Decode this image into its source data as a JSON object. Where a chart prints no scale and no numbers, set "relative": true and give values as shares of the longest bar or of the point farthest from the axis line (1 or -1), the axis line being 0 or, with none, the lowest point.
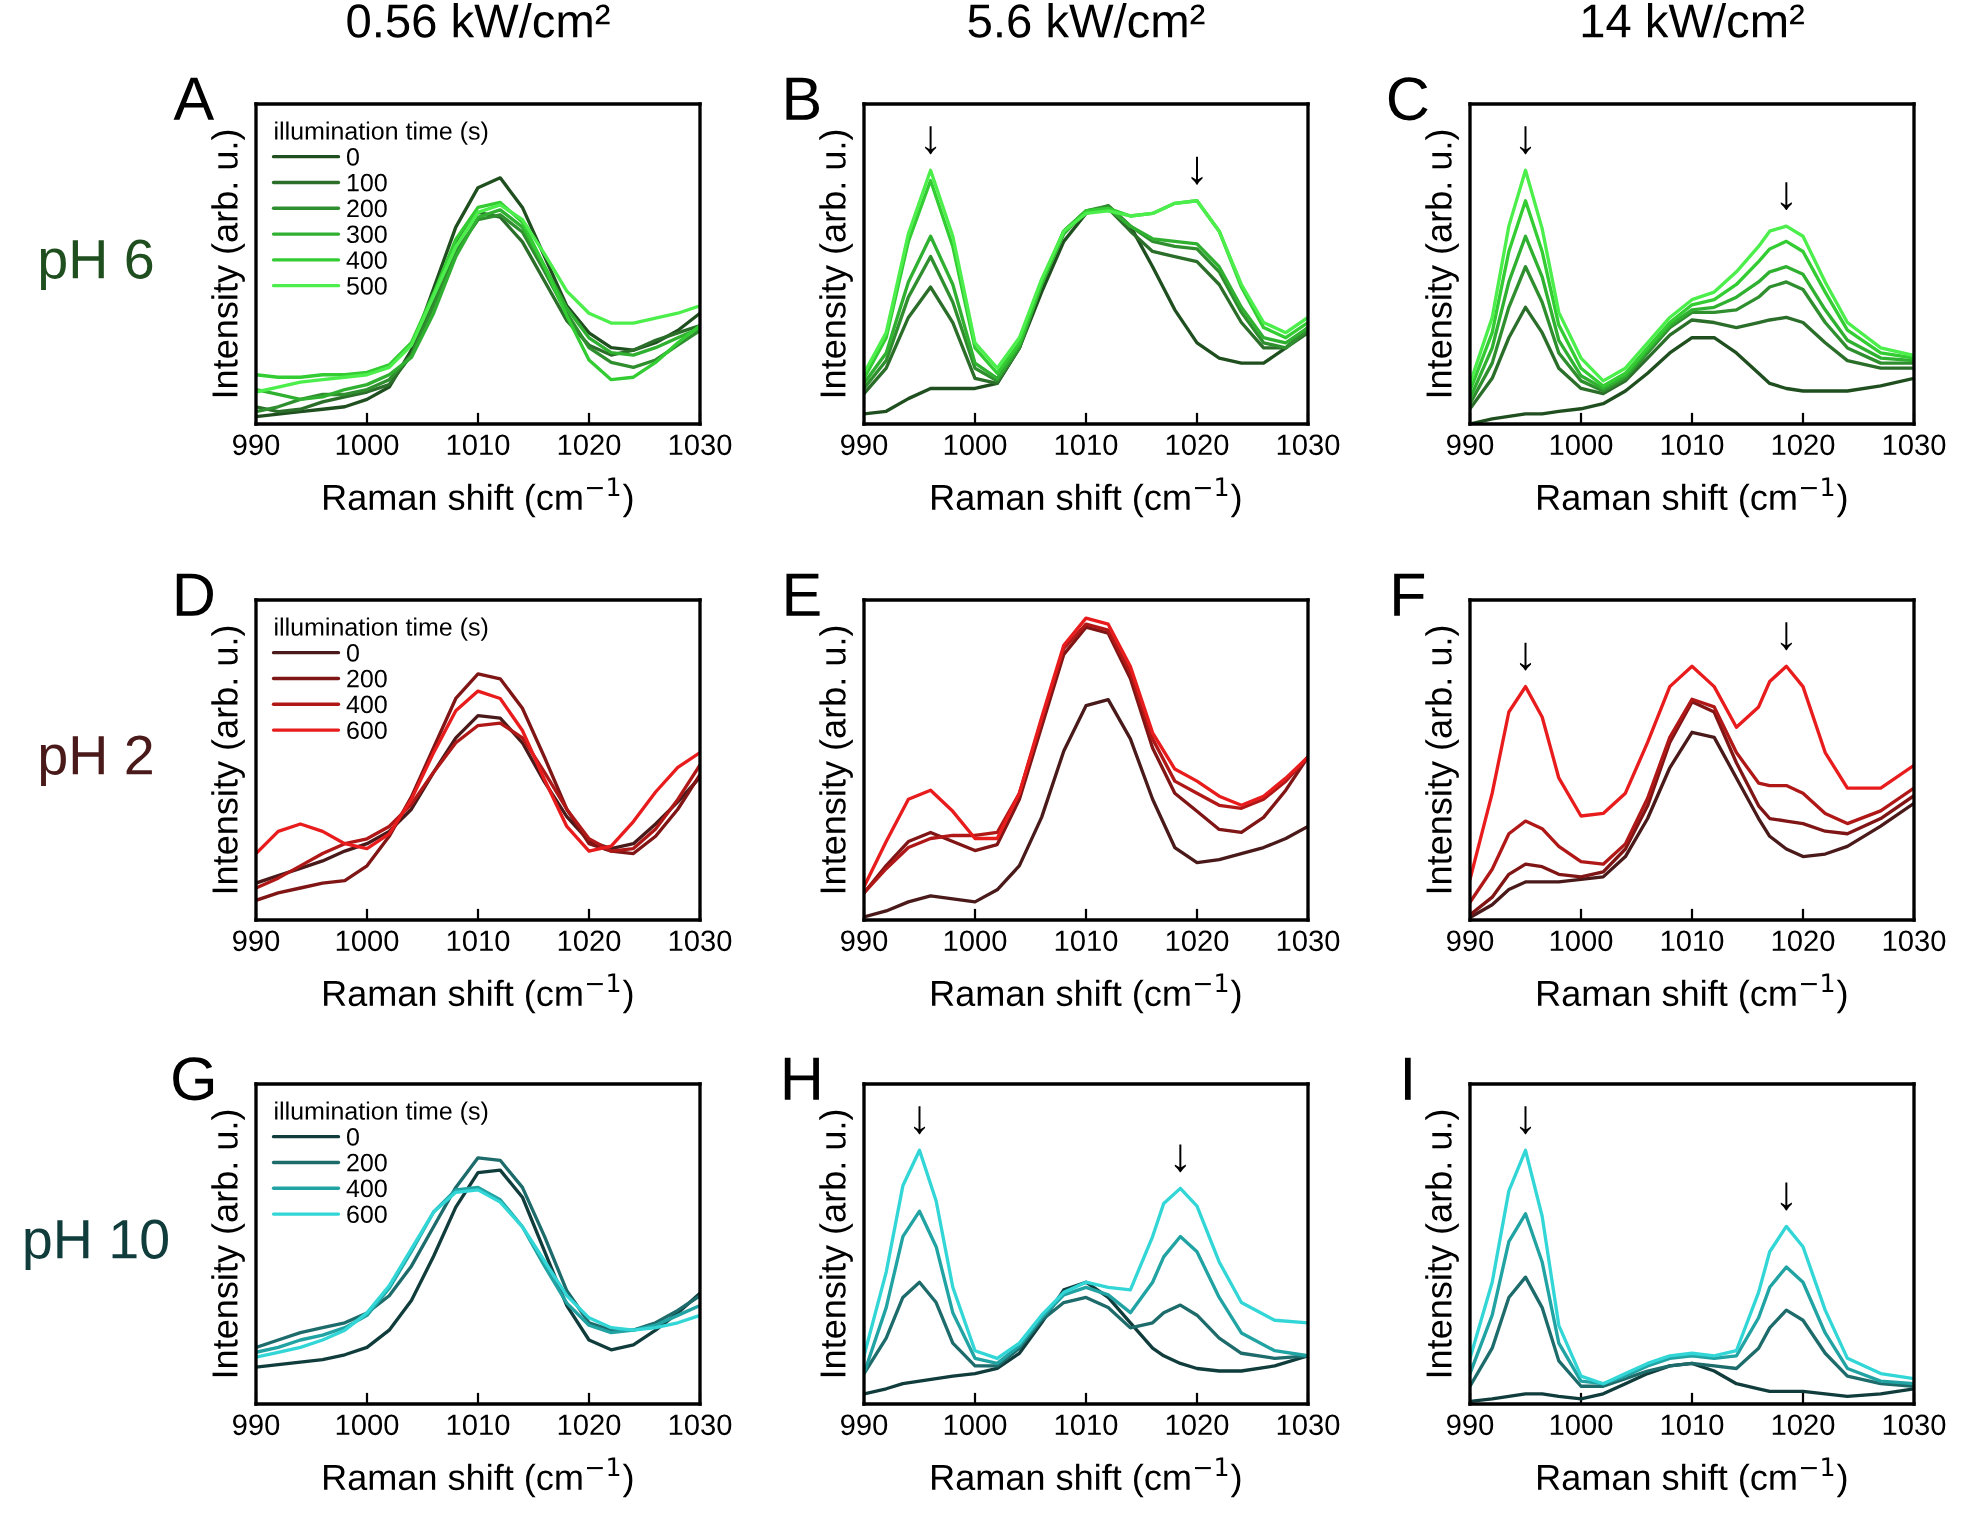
{
  "chart_data": [
    {
      "type": "line",
      "relative": true,
      "title": "0.56 kW/cm²",
      "subtitle": "A",
      "xlabel": "Raman shift (cm$^{−1}$)",
      "ylabel": "Intensity (arb. u.)",
      "xlim": [
        990,
        1030
      ],
      "xticks": [
        990,
        1000,
        1010,
        1020,
        1030
      ],
      "legend": "top left",
      "legend_title": "illumination time (s)",
      "annotations": [
        "pH 6"
      ],
      "x": [
        990,
        992,
        994,
        996,
        998,
        1000,
        1002,
        1004,
        1006,
        1008,
        1010,
        1012,
        1014,
        1016,
        1018,
        1020,
        1022,
        1024,
        1026,
        1028,
        1030
      ],
      "series": [
        {
          "name": "0",
          "color": "#1f4f1f",
          "values": [
            0.03,
            0.04,
            0.05,
            0.06,
            0.07,
            0.1,
            0.15,
            0.3,
            0.55,
            0.8,
            0.96,
            1.0,
            0.88,
            0.68,
            0.48,
            0.37,
            0.31,
            0.3,
            0.33,
            0.38,
            0.45
          ]
        },
        {
          "name": "100",
          "color": "#2a6e2a",
          "values": [
            0.07,
            0.05,
            0.06,
            0.09,
            0.11,
            0.13,
            0.16,
            0.28,
            0.5,
            0.73,
            0.86,
            0.84,
            0.74,
            0.58,
            0.42,
            0.32,
            0.28,
            0.3,
            0.34,
            0.37,
            0.4
          ]
        },
        {
          "name": "200",
          "color": "#2f8f2f",
          "values": [
            0.05,
            0.07,
            0.1,
            0.12,
            0.12,
            0.14,
            0.18,
            0.28,
            0.48,
            0.7,
            0.83,
            0.85,
            0.78,
            0.62,
            0.45,
            0.31,
            0.25,
            0.23,
            0.26,
            0.32,
            0.38
          ]
        },
        {
          "name": "300",
          "color": "#30b030",
          "values": [
            0.14,
            0.12,
            0.1,
            0.11,
            0.14,
            0.16,
            0.2,
            0.27,
            0.45,
            0.68,
            0.84,
            0.87,
            0.8,
            0.64,
            0.47,
            0.35,
            0.29,
            0.28,
            0.31,
            0.35,
            0.39
          ]
        },
        {
          "name": "400",
          "color": "#33cc33",
          "values": [
            0.2,
            0.19,
            0.19,
            0.2,
            0.2,
            0.21,
            0.24,
            0.33,
            0.53,
            0.75,
            0.88,
            0.9,
            0.82,
            0.64,
            0.44,
            0.26,
            0.18,
            0.19,
            0.25,
            0.33,
            0.4
          ]
        },
        {
          "name": "500",
          "color": "#4cee4c",
          "values": [
            0.13,
            0.15,
            0.17,
            0.18,
            0.19,
            0.2,
            0.23,
            0.32,
            0.52,
            0.72,
            0.86,
            0.89,
            0.83,
            0.69,
            0.54,
            0.45,
            0.41,
            0.41,
            0.43,
            0.45,
            0.48
          ]
        }
      ]
    },
    {
      "type": "line",
      "relative": true,
      "title": "5.6 kW/cm²",
      "subtitle": "B",
      "xlabel": "Raman shift (cm$^{−1}$)",
      "ylabel": "Intensity (arb. u.)",
      "xlim": [
        990,
        1030
      ],
      "xticks": [
        990,
        1000,
        1010,
        1020,
        1030
      ],
      "annotations": [
        "↓",
        "↓"
      ],
      "x": [
        990,
        992,
        994,
        996,
        998,
        1000,
        1002,
        1004,
        1006,
        1008,
        1010,
        1012,
        1014,
        1016,
        1018,
        1020,
        1022,
        1024,
        1026,
        1028,
        1030
      ],
      "series": [
        {
          "color": "#1f4f1f",
          "values": [
            0.04,
            0.05,
            0.1,
            0.14,
            0.14,
            0.14,
            0.16,
            0.3,
            0.52,
            0.72,
            0.83,
            0.86,
            0.78,
            0.62,
            0.45,
            0.32,
            0.26,
            0.24,
            0.24,
            0.3,
            0.38
          ]
        },
        {
          "color": "#2a6e2a",
          "values": [
            0.12,
            0.22,
            0.42,
            0.54,
            0.4,
            0.18,
            0.16,
            0.3,
            0.55,
            0.76,
            0.84,
            0.85,
            0.76,
            0.68,
            0.66,
            0.64,
            0.55,
            0.4,
            0.3,
            0.3,
            0.36
          ]
        },
        {
          "color": "#2f8f2f",
          "values": [
            0.14,
            0.25,
            0.5,
            0.66,
            0.48,
            0.22,
            0.17,
            0.3,
            0.55,
            0.76,
            0.84,
            0.86,
            0.78,
            0.72,
            0.7,
            0.69,
            0.6,
            0.44,
            0.32,
            0.3,
            0.37
          ]
        },
        {
          "color": "#30b030",
          "values": [
            0.16,
            0.28,
            0.56,
            0.74,
            0.55,
            0.24,
            0.18,
            0.31,
            0.55,
            0.75,
            0.84,
            0.85,
            0.78,
            0.73,
            0.72,
            0.71,
            0.62,
            0.46,
            0.34,
            0.32,
            0.38
          ]
        },
        {
          "color": "#33cc33",
          "values": [
            0.18,
            0.34,
            0.72,
            0.96,
            0.7,
            0.3,
            0.2,
            0.32,
            0.56,
            0.76,
            0.84,
            0.85,
            0.82,
            0.83,
            0.87,
            0.88,
            0.76,
            0.54,
            0.38,
            0.34,
            0.4
          ]
        },
        {
          "color": "#4cee4c",
          "values": [
            0.2,
            0.36,
            0.75,
            1.0,
            0.74,
            0.32,
            0.22,
            0.34,
            0.57,
            0.76,
            0.83,
            0.84,
            0.82,
            0.83,
            0.87,
            0.88,
            0.76,
            0.55,
            0.4,
            0.36,
            0.42
          ]
        }
      ]
    },
    {
      "type": "line",
      "relative": true,
      "title": "14 kW/cm²",
      "subtitle": "C",
      "xlabel": "Raman shift (cm$^{−1}$)",
      "ylabel": "Intensity (arb. u.)",
      "xlim": [
        990,
        1030
      ],
      "xticks": [
        990,
        1000,
        1010,
        1020,
        1030
      ],
      "annotations": [
        "↓",
        "↓"
      ],
      "x": [
        990,
        992,
        993.5,
        995,
        996.5,
        998,
        1000,
        1002,
        1004,
        1006,
        1008,
        1010,
        1012,
        1014,
        1016,
        1017,
        1018.5,
        1020,
        1022,
        1024,
        1027,
        1030
      ],
      "series": [
        {
          "color": "#1f4f1f",
          "values": [
            0.0,
            0.02,
            0.03,
            0.04,
            0.04,
            0.05,
            0.06,
            0.08,
            0.13,
            0.2,
            0.28,
            0.34,
            0.34,
            0.28,
            0.2,
            0.16,
            0.14,
            0.13,
            0.13,
            0.13,
            0.15,
            0.18
          ]
        },
        {
          "color": "#2a6e2a",
          "values": [
            0.06,
            0.18,
            0.34,
            0.46,
            0.36,
            0.22,
            0.14,
            0.12,
            0.17,
            0.26,
            0.35,
            0.41,
            0.4,
            0.38,
            0.4,
            0.41,
            0.42,
            0.4,
            0.32,
            0.25,
            0.22,
            0.22
          ]
        },
        {
          "color": "#2f8f2f",
          "values": [
            0.08,
            0.24,
            0.46,
            0.62,
            0.48,
            0.28,
            0.17,
            0.13,
            0.18,
            0.28,
            0.38,
            0.44,
            0.44,
            0.45,
            0.5,
            0.54,
            0.56,
            0.53,
            0.4,
            0.3,
            0.24,
            0.24
          ]
        },
        {
          "color": "#30b030",
          "values": [
            0.1,
            0.3,
            0.56,
            0.74,
            0.58,
            0.33,
            0.19,
            0.14,
            0.19,
            0.29,
            0.39,
            0.45,
            0.46,
            0.5,
            0.56,
            0.6,
            0.62,
            0.59,
            0.45,
            0.33,
            0.26,
            0.25
          ]
        },
        {
          "color": "#33cc33",
          "values": [
            0.13,
            0.36,
            0.68,
            0.88,
            0.68,
            0.39,
            0.22,
            0.15,
            0.2,
            0.3,
            0.4,
            0.47,
            0.49,
            0.55,
            0.64,
            0.69,
            0.72,
            0.68,
            0.52,
            0.37,
            0.28,
            0.26
          ]
        },
        {
          "color": "#4cee4c",
          "values": [
            0.16,
            0.42,
            0.78,
            1.0,
            0.77,
            0.44,
            0.26,
            0.17,
            0.22,
            0.32,
            0.42,
            0.49,
            0.52,
            0.6,
            0.7,
            0.76,
            0.78,
            0.74,
            0.56,
            0.4,
            0.3,
            0.27
          ]
        }
      ]
    },
    {
      "type": "line",
      "relative": true,
      "subtitle": "D",
      "xlabel": "Raman shift (cm$^{−1}$)",
      "ylabel": "Intensity (arb. u.)",
      "xlim": [
        990,
        1030
      ],
      "xticks": [
        990,
        1000,
        1010,
        1020,
        1030
      ],
      "legend": "top left",
      "legend_title": "illumination time (s)",
      "annotations": [
        "pH 2"
      ],
      "x": [
        990,
        992,
        994,
        996,
        998,
        1000,
        1002,
        1004,
        1006,
        1008,
        1010,
        1012,
        1014,
        1016,
        1018,
        1020,
        1022,
        1024,
        1026,
        1028,
        1030
      ],
      "series": [
        {
          "name": "0",
          "color": "#4a1a1a",
          "values": [
            0.15,
            0.18,
            0.21,
            0.24,
            0.28,
            0.31,
            0.36,
            0.45,
            0.6,
            0.74,
            0.83,
            0.82,
            0.72,
            0.56,
            0.42,
            0.32,
            0.29,
            0.31,
            0.39,
            0.48,
            0.58
          ]
        },
        {
          "name": "200",
          "color": "#801515",
          "values": [
            0.08,
            0.11,
            0.13,
            0.15,
            0.16,
            0.22,
            0.34,
            0.5,
            0.7,
            0.9,
            1.0,
            0.98,
            0.86,
            0.66,
            0.45,
            0.31,
            0.28,
            0.27,
            0.34,
            0.45,
            0.59
          ]
        },
        {
          "name": "400",
          "color": "#b01818",
          "values": [
            0.13,
            0.17,
            0.22,
            0.27,
            0.31,
            0.33,
            0.38,
            0.47,
            0.6,
            0.72,
            0.79,
            0.8,
            0.74,
            0.6,
            0.45,
            0.33,
            0.28,
            0.29,
            0.37,
            0.49,
            0.63
          ]
        },
        {
          "name": "600",
          "color": "#e81c1c",
          "values": [
            0.27,
            0.36,
            0.39,
            0.36,
            0.31,
            0.29,
            0.35,
            0.49,
            0.68,
            0.85,
            0.93,
            0.9,
            0.77,
            0.57,
            0.38,
            0.28,
            0.3,
            0.4,
            0.52,
            0.62,
            0.68
          ]
        }
      ]
    },
    {
      "type": "line",
      "relative": true,
      "subtitle": "E",
      "xlabel": "Raman shift (cm$^{−1}$)",
      "ylabel": "Intensity (arb. u.)",
      "xlim": [
        990,
        1030
      ],
      "xticks": [
        990,
        1000,
        1010,
        1020,
        1030
      ],
      "x": [
        990,
        992,
        994,
        996,
        998,
        1000,
        1002,
        1004,
        1006,
        1008,
        1010,
        1012,
        1014,
        1016,
        1018,
        1020,
        1022,
        1024,
        1026,
        1028,
        1030
      ],
      "series": [
        {
          "color": "#4a1a1a",
          "values": [
            0.01,
            0.03,
            0.06,
            0.08,
            0.07,
            0.06,
            0.1,
            0.18,
            0.34,
            0.56,
            0.71,
            0.73,
            0.6,
            0.4,
            0.24,
            0.19,
            0.2,
            0.22,
            0.24,
            0.27,
            0.31
          ]
        },
        {
          "color": "#801515",
          "values": [
            0.09,
            0.18,
            0.26,
            0.29,
            0.26,
            0.23,
            0.25,
            0.4,
            0.64,
            0.88,
            0.97,
            0.95,
            0.8,
            0.57,
            0.42,
            0.36,
            0.3,
            0.29,
            0.34,
            0.43,
            0.54
          ]
        },
        {
          "color": "#b01818",
          "values": [
            0.09,
            0.17,
            0.24,
            0.27,
            0.28,
            0.28,
            0.29,
            0.42,
            0.66,
            0.9,
            0.98,
            0.96,
            0.82,
            0.6,
            0.46,
            0.42,
            0.38,
            0.37,
            0.4,
            0.46,
            0.54
          ]
        },
        {
          "color": "#e81c1c",
          "values": [
            0.11,
            0.26,
            0.4,
            0.43,
            0.36,
            0.27,
            0.27,
            0.42,
            0.67,
            0.91,
            1.0,
            0.98,
            0.84,
            0.62,
            0.5,
            0.46,
            0.41,
            0.38,
            0.41,
            0.47,
            0.54
          ]
        }
      ]
    },
    {
      "type": "line",
      "relative": true,
      "subtitle": "F",
      "xlabel": "Raman shift (cm$^{−1}$)",
      "ylabel": "Intensity (arb. u.)",
      "xlim": [
        990,
        1030
      ],
      "xticks": [
        990,
        1000,
        1010,
        1020,
        1030
      ],
      "annotations": [
        "↓",
        "↓"
      ],
      "x": [
        990,
        992,
        993.5,
        995,
        996.5,
        998,
        1000,
        1002,
        1004,
        1006,
        1008,
        1010,
        1012,
        1014,
        1016,
        1017,
        1018.5,
        1020,
        1022,
        1024,
        1027,
        1030
      ],
      "series": [
        {
          "color": "#4a1a1a",
          "values": [
            0.01,
            0.06,
            0.12,
            0.15,
            0.15,
            0.15,
            0.16,
            0.17,
            0.25,
            0.4,
            0.6,
            0.74,
            0.72,
            0.56,
            0.4,
            0.33,
            0.28,
            0.25,
            0.26,
            0.29,
            0.37,
            0.46
          ]
        },
        {
          "color": "#801515",
          "values": [
            0.02,
            0.09,
            0.18,
            0.22,
            0.21,
            0.18,
            0.17,
            0.19,
            0.28,
            0.45,
            0.7,
            0.86,
            0.82,
            0.62,
            0.45,
            0.4,
            0.39,
            0.38,
            0.35,
            0.34,
            0.4,
            0.49
          ]
        },
        {
          "color": "#b01818",
          "values": [
            0.07,
            0.2,
            0.34,
            0.39,
            0.36,
            0.29,
            0.23,
            0.22,
            0.3,
            0.48,
            0.72,
            0.87,
            0.84,
            0.66,
            0.54,
            0.53,
            0.53,
            0.5,
            0.42,
            0.38,
            0.43,
            0.52
          ]
        },
        {
          "color": "#e81c1c",
          "values": [
            0.16,
            0.5,
            0.82,
            0.92,
            0.8,
            0.56,
            0.41,
            0.42,
            0.5,
            0.7,
            0.92,
            1.0,
            0.92,
            0.76,
            0.84,
            0.94,
            1.0,
            0.92,
            0.66,
            0.52,
            0.52,
            0.61
          ]
        }
      ]
    },
    {
      "type": "line",
      "relative": true,
      "subtitle": "G",
      "xlabel": "Raman shift (cm$^{−1}$)",
      "ylabel": "Intensity (arb. u.)",
      "xlim": [
        990,
        1030
      ],
      "xticks": [
        990,
        1000,
        1010,
        1020,
        1030
      ],
      "legend": "top left",
      "legend_title": "illumination time (s)",
      "annotations": [
        "pH 10"
      ],
      "x": [
        990,
        992,
        994,
        996,
        998,
        1000,
        1002,
        1004,
        1006,
        1008,
        1010,
        1012,
        1014,
        1016,
        1018,
        1020,
        1022,
        1024,
        1026,
        1028,
        1030
      ],
      "series": [
        {
          "name": "0",
          "color": "#103c3c",
          "values": [
            0.15,
            0.16,
            0.17,
            0.18,
            0.2,
            0.23,
            0.3,
            0.42,
            0.6,
            0.8,
            0.94,
            0.95,
            0.84,
            0.62,
            0.4,
            0.26,
            0.22,
            0.24,
            0.3,
            0.37,
            0.45
          ]
        },
        {
          "name": "200",
          "color": "#1d6b6b",
          "values": [
            0.23,
            0.26,
            0.29,
            0.31,
            0.33,
            0.37,
            0.44,
            0.56,
            0.72,
            0.88,
            1.0,
            0.99,
            0.88,
            0.68,
            0.46,
            0.33,
            0.3,
            0.3,
            0.33,
            0.38,
            0.44
          ]
        },
        {
          "name": "400",
          "color": "#21a3a3",
          "values": [
            0.21,
            0.23,
            0.26,
            0.28,
            0.31,
            0.36,
            0.47,
            0.62,
            0.78,
            0.87,
            0.88,
            0.83,
            0.72,
            0.56,
            0.41,
            0.32,
            0.29,
            0.3,
            0.32,
            0.36,
            0.4
          ]
        },
        {
          "name": "600",
          "color": "#33d6d6",
          "values": [
            0.19,
            0.21,
            0.23,
            0.26,
            0.3,
            0.37,
            0.48,
            0.63,
            0.78,
            0.86,
            0.87,
            0.82,
            0.72,
            0.58,
            0.44,
            0.35,
            0.31,
            0.3,
            0.31,
            0.33,
            0.36
          ]
        }
      ]
    },
    {
      "type": "line",
      "relative": true,
      "subtitle": "H",
      "xlabel": "Raman shift (cm$^{−1}$)",
      "ylabel": "Intensity (arb. u.)",
      "xlim": [
        990,
        1030
      ],
      "xticks": [
        990,
        1000,
        1010,
        1020,
        1030
      ],
      "annotations": [
        "↓",
        "↓"
      ],
      "x": [
        990,
        992,
        993.5,
        995,
        996.5,
        998,
        1000,
        1002,
        1004,
        1006,
        1008,
        1010,
        1012,
        1014,
        1016,
        1017,
        1018.5,
        1020,
        1022,
        1024,
        1027,
        1030
      ],
      "series": [
        {
          "color": "#103c3c",
          "values": [
            0.04,
            0.06,
            0.08,
            0.09,
            0.1,
            0.11,
            0.12,
            0.14,
            0.2,
            0.32,
            0.45,
            0.48,
            0.42,
            0.32,
            0.22,
            0.19,
            0.16,
            0.14,
            0.13,
            0.13,
            0.15,
            0.19
          ]
        },
        {
          "color": "#1d6b6b",
          "values": [
            0.12,
            0.26,
            0.42,
            0.48,
            0.4,
            0.24,
            0.15,
            0.15,
            0.22,
            0.33,
            0.4,
            0.42,
            0.38,
            0.3,
            0.32,
            0.36,
            0.39,
            0.35,
            0.26,
            0.2,
            0.18,
            0.19
          ]
        },
        {
          "color": "#21a3a3",
          "values": [
            0.12,
            0.38,
            0.66,
            0.76,
            0.62,
            0.36,
            0.18,
            0.16,
            0.23,
            0.34,
            0.43,
            0.46,
            0.43,
            0.36,
            0.48,
            0.58,
            0.66,
            0.6,
            0.42,
            0.28,
            0.21,
            0.19
          ]
        },
        {
          "color": "#33d6d6",
          "values": [
            0.19,
            0.52,
            0.86,
            1.0,
            0.8,
            0.46,
            0.21,
            0.18,
            0.24,
            0.35,
            0.44,
            0.48,
            0.46,
            0.45,
            0.66,
            0.79,
            0.85,
            0.78,
            0.56,
            0.4,
            0.33,
            0.32
          ]
        }
      ]
    },
    {
      "type": "line",
      "relative": true,
      "subtitle": "I",
      "xlabel": "Raman shift (cm$^{−1}$)",
      "ylabel": "Intensity (arb. u.)",
      "xlim": [
        990,
        1030
      ],
      "xticks": [
        990,
        1000,
        1010,
        1020,
        1030
      ],
      "annotations": [
        "↓",
        "↓"
      ],
      "x": [
        990,
        992,
        993.5,
        995,
        996.5,
        998,
        1000,
        1002,
        1004,
        1006,
        1008,
        1010,
        1012,
        1014,
        1016,
        1017,
        1018.5,
        1020,
        1022,
        1024,
        1027,
        1030
      ],
      "series": [
        {
          "color": "#103c3c",
          "values": [
            0.01,
            0.02,
            0.03,
            0.04,
            0.04,
            0.03,
            0.02,
            0.04,
            0.08,
            0.12,
            0.15,
            0.16,
            0.13,
            0.08,
            0.06,
            0.05,
            0.05,
            0.05,
            0.04,
            0.03,
            0.04,
            0.06
          ]
        },
        {
          "color": "#1d6b6b",
          "values": [
            0.07,
            0.22,
            0.42,
            0.5,
            0.38,
            0.17,
            0.07,
            0.07,
            0.1,
            0.13,
            0.15,
            0.16,
            0.15,
            0.14,
            0.22,
            0.3,
            0.37,
            0.33,
            0.2,
            0.11,
            0.08,
            0.07
          ]
        },
        {
          "color": "#21a3a3",
          "values": [
            0.12,
            0.35,
            0.64,
            0.75,
            0.56,
            0.24,
            0.09,
            0.08,
            0.11,
            0.15,
            0.18,
            0.19,
            0.18,
            0.19,
            0.34,
            0.46,
            0.54,
            0.48,
            0.28,
            0.14,
            0.09,
            0.08
          ]
        },
        {
          "color": "#33d6d6",
          "values": [
            0.18,
            0.48,
            0.84,
            1.0,
            0.74,
            0.31,
            0.11,
            0.08,
            0.12,
            0.16,
            0.19,
            0.2,
            0.19,
            0.21,
            0.44,
            0.6,
            0.7,
            0.62,
            0.37,
            0.18,
            0.12,
            0.1
          ]
        }
      ]
    }
  ]
}
